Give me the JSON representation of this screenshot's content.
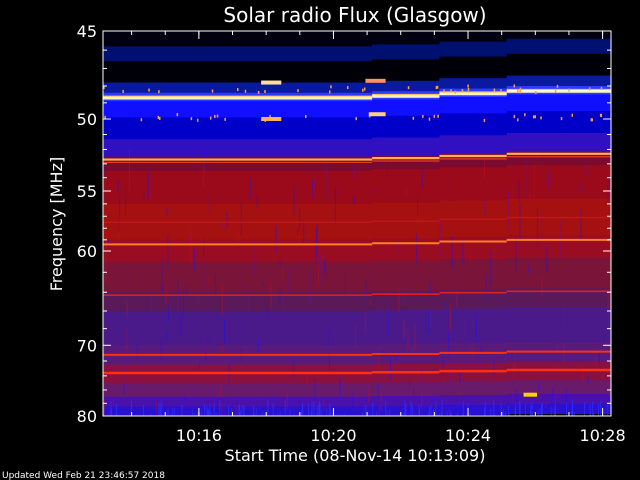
{
  "chart_data": {
    "type": "heatmap",
    "title": "Solar radio Flux (Glasgow)",
    "ylabel": "Frequency [MHz]",
    "xlabel": "Start Time (08-Nov-14 10:13:09)",
    "x_unit": "minutes after 10:13:09",
    "xlim": [
      0,
      15.1
    ],
    "ylim": [
      45,
      80
    ],
    "y_scale": "reciprocal",
    "y_inverted": true,
    "y_ticks": [
      45,
      50,
      55,
      60,
      70,
      80
    ],
    "y_tick_labels": [
      "45",
      "50",
      "55",
      "60",
      "70",
      "80"
    ],
    "x_ticks": [
      2.85,
      6.85,
      10.85,
      14.85
    ],
    "x_tick_labels": [
      "10:16",
      "10:20",
      "10:24",
      "10:28"
    ],
    "segments": [
      {
        "start": 0.0,
        "end": 8.0,
        "shift": 0.0
      },
      {
        "start": 8.0,
        "end": 10.0,
        "shift": 0.1
      },
      {
        "start": 10.0,
        "end": 12.0,
        "shift": 0.25
      },
      {
        "start": 12.0,
        "end": 15.1,
        "shift": 0.4
      }
    ],
    "bands": [
      {
        "f0": 45.0,
        "f1": 45.8,
        "color": "#000010"
      },
      {
        "f0": 45.8,
        "f1": 46.6,
        "color": "#001070"
      },
      {
        "f0": 46.6,
        "f1": 47.8,
        "color": "#000008"
      },
      {
        "f0": 47.8,
        "f1": 48.4,
        "color": "#0a1aa0"
      },
      {
        "f0": 48.4,
        "f1": 48.9,
        "color": "#2a3aff"
      },
      {
        "f0": 48.9,
        "f1": 49.9,
        "color": "#1010ff"
      },
      {
        "f0": 49.9,
        "f1": 51.3,
        "color": "#0000c8"
      },
      {
        "f0": 51.3,
        "f1": 52.5,
        "color": "#3010c0"
      },
      {
        "f0": 52.5,
        "f1": 53.5,
        "color": "#7a0a30"
      },
      {
        "f0": 53.5,
        "f1": 56.0,
        "color": "#9a0a1a"
      },
      {
        "f0": 56.0,
        "f1": 59.0,
        "color": "#a51010"
      },
      {
        "f0": 59.0,
        "f1": 61.0,
        "color": "#9a0c22"
      },
      {
        "f0": 61.0,
        "f1": 64.0,
        "color": "#7a1438"
      },
      {
        "f0": 64.0,
        "f1": 66.0,
        "color": "#5a1a5a"
      },
      {
        "f0": 66.0,
        "f1": 70.0,
        "color": "#4a1a8a"
      },
      {
        "f0": 70.0,
        "f1": 72.5,
        "color": "#5a1a7a"
      },
      {
        "f0": 72.5,
        "f1": 75.0,
        "color": "#8a1040"
      },
      {
        "f0": 75.0,
        "f1": 77.0,
        "color": "#6a1a6a"
      },
      {
        "f0": 77.0,
        "f1": 78.5,
        "color": "#4a10aa"
      },
      {
        "f0": 78.5,
        "f1": 80.0,
        "color": "#2a10d0"
      }
    ],
    "lines": [
      {
        "freq": 48.7,
        "color": "#fff6c8",
        "width": 3.2
      },
      {
        "freq": 48.6,
        "color": "#ffc060",
        "width": 1.2
      },
      {
        "freq": 52.7,
        "color": "#ffb050",
        "width": 2.2
      },
      {
        "freq": 52.9,
        "color": "#e04020",
        "width": 1.2
      },
      {
        "freq": 59.4,
        "color": "#ff8020",
        "width": 2.0
      },
      {
        "freq": 64.3,
        "color": "#e02020",
        "width": 1.6
      },
      {
        "freq": 71.2,
        "color": "#ff3010",
        "width": 2.0
      },
      {
        "freq": 73.6,
        "color": "#ff3010",
        "width": 2.5
      },
      {
        "freq": 57.5,
        "color": "#c01818",
        "width": 1.5
      }
    ],
    "bursts": [
      {
        "t0": 4.7,
        "t1": 5.3,
        "freq": 47.8,
        "color": "#ffe0a0"
      },
      {
        "t0": 4.7,
        "t1": 5.3,
        "freq": 50.0,
        "color": "#ffb060"
      },
      {
        "t0": 7.8,
        "t1": 8.4,
        "freq": 47.7,
        "color": "#ff9060"
      },
      {
        "t0": 7.9,
        "t1": 8.4,
        "freq": 49.7,
        "color": "#ffd080"
      },
      {
        "t0": 12.5,
        "t1": 12.9,
        "freq": 76.7,
        "color": "#ffd000"
      }
    ]
  },
  "footer": {
    "updated": "Updated Wed Feb 21 23:46:57 2018"
  }
}
